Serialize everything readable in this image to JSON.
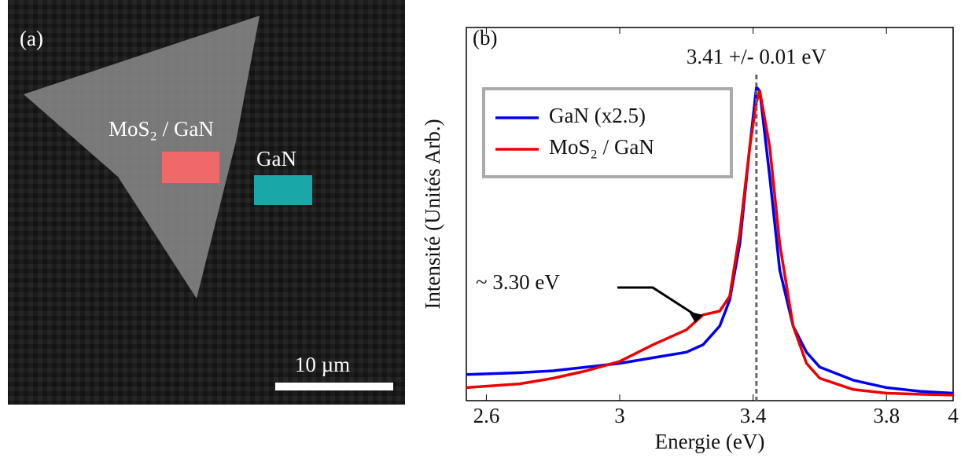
{
  "image_panel": {
    "label": "(a)",
    "region_labels": [
      "MoS₂ / GaN",
      "GaN"
    ],
    "scale_bar": "10 µm"
  },
  "chart_data": {
    "type": "line",
    "label": "(b)",
    "x_label": "Energie (eV)",
    "y_label": "Intensité (Unités Arb.)",
    "x": [
      2.54,
      2.7,
      2.8,
      2.9,
      3.0,
      3.1,
      3.2,
      3.25,
      3.3,
      3.33,
      3.36,
      3.39,
      3.41,
      3.42,
      3.45,
      3.48,
      3.52,
      3.56,
      3.6,
      3.7,
      3.8,
      3.9,
      4.0
    ],
    "series": [
      {
        "name": "GaN (x2.5)",
        "color": "#0000ee",
        "values": [
          0.07,
          0.075,
          0.08,
          0.09,
          0.1,
          0.115,
          0.13,
          0.15,
          0.2,
          0.27,
          0.42,
          0.68,
          0.84,
          0.83,
          0.6,
          0.35,
          0.2,
          0.13,
          0.09,
          0.055,
          0.035,
          0.025,
          0.02
        ]
      },
      {
        "name": "MoS₂ / GaN",
        "color": "#ee0000",
        "values": [
          0.035,
          0.045,
          0.06,
          0.08,
          0.105,
          0.15,
          0.19,
          0.23,
          0.24,
          0.28,
          0.45,
          0.68,
          0.8,
          0.83,
          0.68,
          0.42,
          0.2,
          0.1,
          0.06,
          0.03,
          0.02,
          0.017,
          0.015
        ]
      }
    ],
    "xlim": [
      2.54,
      4.0
    ],
    "xticks": [
      2.6,
      3,
      3.4,
      3.8,
      4
    ],
    "ylim": [
      0,
      1
    ],
    "legend": "upper left",
    "annotations": [
      {
        "text": "3.41 +/- 0.01 eV",
        "x": 3.41
      },
      {
        "text": "~ 3.30 eV",
        "x": 3.25,
        "y": 0.23
      }
    ]
  }
}
